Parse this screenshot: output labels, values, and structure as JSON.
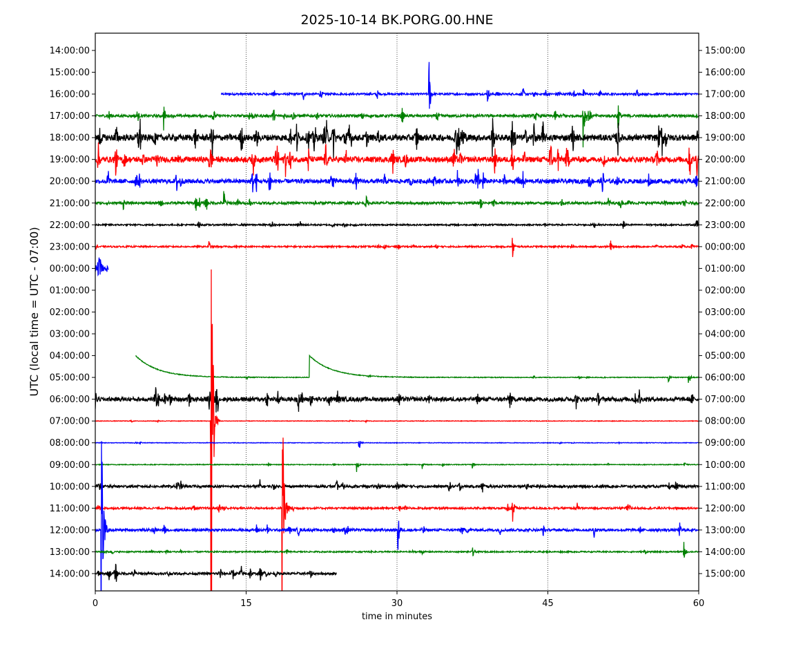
{
  "chart_data": {
    "type": "line",
    "title": "2025-10-14 BK.PORG.00.HNE",
    "xlabel": "time in minutes",
    "ylabel": "UTC (local time = UTC - 07:00)",
    "xlim": [
      0,
      60
    ],
    "xticks": [
      "0",
      "15",
      "30",
      "45",
      "60"
    ],
    "xtick_values": [
      0,
      15,
      30,
      45,
      60
    ],
    "grid": "vertical dotted at 15, 30, 45",
    "colors": [
      "#000000",
      "#ff0000",
      "#0000ff",
      "#008000"
    ],
    "rows": [
      {
        "left": "14:00:00",
        "right": "15:00:00",
        "start": null,
        "end": null,
        "amp": 0,
        "events": []
      },
      {
        "left": "15:00:00",
        "right": "16:00:00",
        "start": null,
        "end": null,
        "amp": 0,
        "events": []
      },
      {
        "left": "16:00:00",
        "right": "17:00:00",
        "start": 12.5,
        "end": 60,
        "amp": 0.1,
        "events": [
          [
            33.2,
            1.8
          ],
          [
            39,
            0.5
          ],
          [
            28,
            0.3
          ],
          [
            48.5,
            0.3
          ]
        ]
      },
      {
        "left": "17:00:00",
        "right": "18:00:00",
        "start": 0,
        "end": 60,
        "amp": 0.14,
        "events": [
          [
            48.5,
            2.1
          ],
          [
            6.8,
            0.7
          ],
          [
            52,
            0.7
          ],
          [
            22,
            0.3
          ]
        ]
      },
      {
        "left": "18:00:00",
        "right": "19:00:00",
        "start": 0,
        "end": 60,
        "amp": 0.32,
        "events": [
          [
            0.4,
            0.8
          ],
          [
            23,
            0.6
          ],
          [
            56,
            0.6
          ]
        ]
      },
      {
        "left": "19:00:00",
        "right": "20:00:00",
        "start": 0,
        "end": 60,
        "amp": 0.28,
        "events": [
          [
            2,
            0.6
          ],
          [
            11.3,
            0.6
          ],
          [
            46,
            0.7
          ]
        ]
      },
      {
        "left": "20:00:00",
        "right": "21:00:00",
        "start": 0,
        "end": 60,
        "amp": 0.22,
        "events": [
          [
            36,
            0.6
          ],
          [
            55,
            0.5
          ]
        ]
      },
      {
        "left": "21:00:00",
        "right": "22:00:00",
        "start": 0,
        "end": 60,
        "amp": 0.13,
        "events": [
          [
            12.8,
            0.8
          ],
          [
            51,
            0.4
          ],
          [
            2.8,
            0.3
          ]
        ]
      },
      {
        "left": "22:00:00",
        "right": "23:00:00",
        "start": 0,
        "end": 60,
        "amp": 0.08,
        "events": [
          [
            10.3,
            0.25
          ],
          [
            52.5,
            0.3
          ]
        ]
      },
      {
        "left": "23:00:00",
        "right": "00:00:00",
        "start": 0,
        "end": 60,
        "amp": 0.08,
        "events": [
          [
            41.5,
            0.6
          ],
          [
            51.2,
            0.4
          ],
          [
            11.3,
            0.3
          ]
        ]
      },
      {
        "left": "00:00:00",
        "right": "01:00:00",
        "start": 0,
        "end": 1.3,
        "amp": 0.08,
        "events": []
      },
      {
        "left": "01:00:00",
        "right": "02:00:00",
        "start": null,
        "end": null,
        "amp": 0,
        "events": []
      },
      {
        "left": "02:00:00",
        "right": "03:00:00",
        "start": null,
        "end": null,
        "amp": 0,
        "events": []
      },
      {
        "left": "03:00:00",
        "right": "04:00:00",
        "start": null,
        "end": null,
        "amp": 0,
        "events": []
      },
      {
        "left": "04:00:00",
        "right": "05:00:00",
        "start": null,
        "end": null,
        "amp": 0,
        "events": []
      },
      {
        "left": "05:00:00",
        "right": "06:00:00",
        "start": 4,
        "end": 60,
        "amp": 0.04,
        "events": [
          [
            59,
            0.8
          ],
          [
            15,
            0.15
          ],
          [
            57,
            0.3
          ]
        ],
        "drift": [
          [
            4,
            1.0
          ],
          [
            21.3,
            1.0
          ]
        ]
      },
      {
        "left": "06:00:00",
        "right": "07:00:00",
        "start": 0,
        "end": 60,
        "amp": 0.22,
        "events": []
      },
      {
        "left": "07:00:00",
        "right": "08:00:00",
        "start": 0,
        "end": 60,
        "amp": 0.03,
        "events": [
          [
            11.5,
            16
          ]
        ]
      },
      {
        "left": "08:00:00",
        "right": "09:00:00",
        "start": 0,
        "end": 60,
        "amp": 0.03,
        "events": [
          [
            26.2,
            0.6
          ],
          [
            4.4,
            0.1
          ]
        ]
      },
      {
        "left": "09:00:00",
        "right": "10:00:00",
        "start": 0,
        "end": 60,
        "amp": 0.04,
        "events": [
          [
            26,
            0.4
          ],
          [
            32.5,
            0.2
          ],
          [
            37.5,
            0.2
          ],
          [
            58.5,
            0.25
          ]
        ]
      },
      {
        "left": "10:00:00",
        "right": "11:00:00",
        "start": 0,
        "end": 60,
        "amp": 0.13,
        "events": [
          [
            30.5,
            0.35
          ],
          [
            57,
            0.25
          ]
        ]
      },
      {
        "left": "11:00:00",
        "right": "12:00:00",
        "start": 0,
        "end": 60,
        "amp": 0.1,
        "events": [
          [
            18.6,
            8
          ],
          [
            41.5,
            1.0
          ],
          [
            0.3,
            0.3
          ]
        ]
      },
      {
        "left": "12:00:00",
        "right": "13:00:00",
        "start": 0,
        "end": 60,
        "amp": 0.13,
        "events": [
          [
            0.6,
            7
          ],
          [
            30.1,
            1.4
          ],
          [
            16,
            0.3
          ]
        ]
      },
      {
        "left": "13:00:00",
        "right": "14:00:00",
        "start": 0,
        "end": 60,
        "amp": 0.07,
        "events": [
          [
            37.5,
            0.5
          ],
          [
            58.5,
            0.7
          ],
          [
            8.5,
            0.2
          ]
        ]
      },
      {
        "left": "14:00:00",
        "right": "15:00:00",
        "start": 0,
        "end": 24,
        "amp": 0.12,
        "events": []
      }
    ]
  }
}
